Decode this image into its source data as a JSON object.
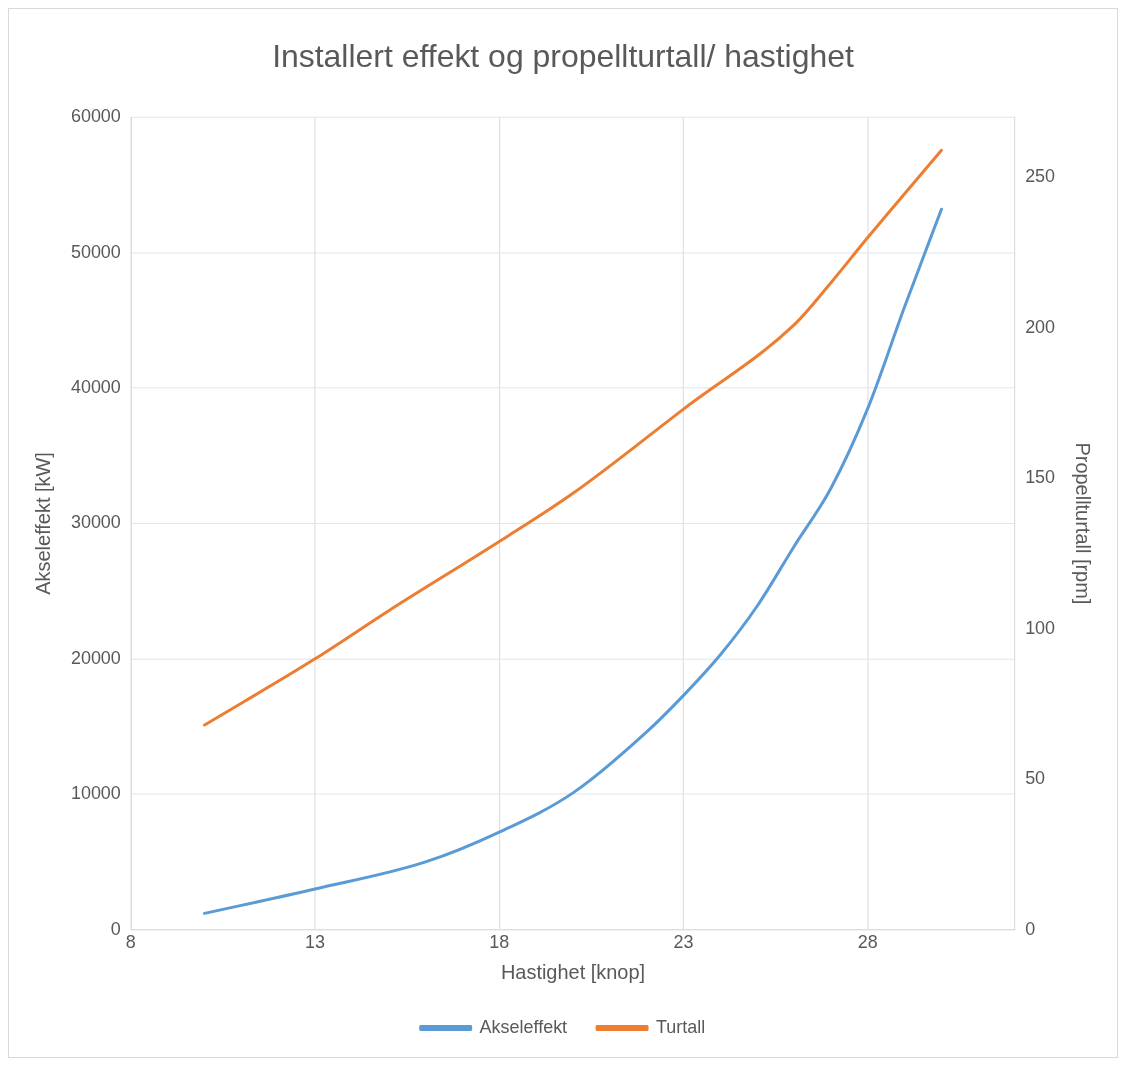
{
  "chart_data": {
    "type": "line",
    "title": "Installert effekt og propellturtall/ hastighet",
    "xlabel": "Hastighet [knop]",
    "ylabel": "Akseleffekt [kW]",
    "y2label": "Propellturtall [rpm]",
    "xlim": [
      8,
      32
    ],
    "xticks": [
      8,
      13,
      18,
      23,
      28
    ],
    "ylim": [
      0,
      60000
    ],
    "yticks": [
      0,
      10000,
      20000,
      30000,
      40000,
      50000,
      60000
    ],
    "y2lim": [
      0,
      270
    ],
    "y2ticks": [
      0,
      50,
      100,
      150,
      200,
      250
    ],
    "grid": true,
    "legend": "bottom",
    "marker": "none",
    "line_style": "solid",
    "series": [
      {
        "name": "Akseleffekt",
        "color": "#5b9bd5",
        "x": [
          10,
          13,
          16,
          18,
          20,
          22,
          23,
          24,
          25,
          26,
          27,
          28,
          29,
          30
        ],
        "values": [
          1200,
          3000,
          5000,
          7200,
          10100,
          14600,
          17300,
          20300,
          23900,
          28300,
          32600,
          38500,
          46000,
          53200
        ]
      },
      {
        "name": "Turtall",
        "color": "#ed7d31",
        "axis": "y2",
        "x": [
          10,
          13,
          15,
          18,
          20,
          23,
          26,
          27,
          28,
          30
        ],
        "values": [
          68,
          90,
          106,
          129,
          145,
          173,
          201,
          215,
          230,
          259
        ]
      }
    ]
  }
}
